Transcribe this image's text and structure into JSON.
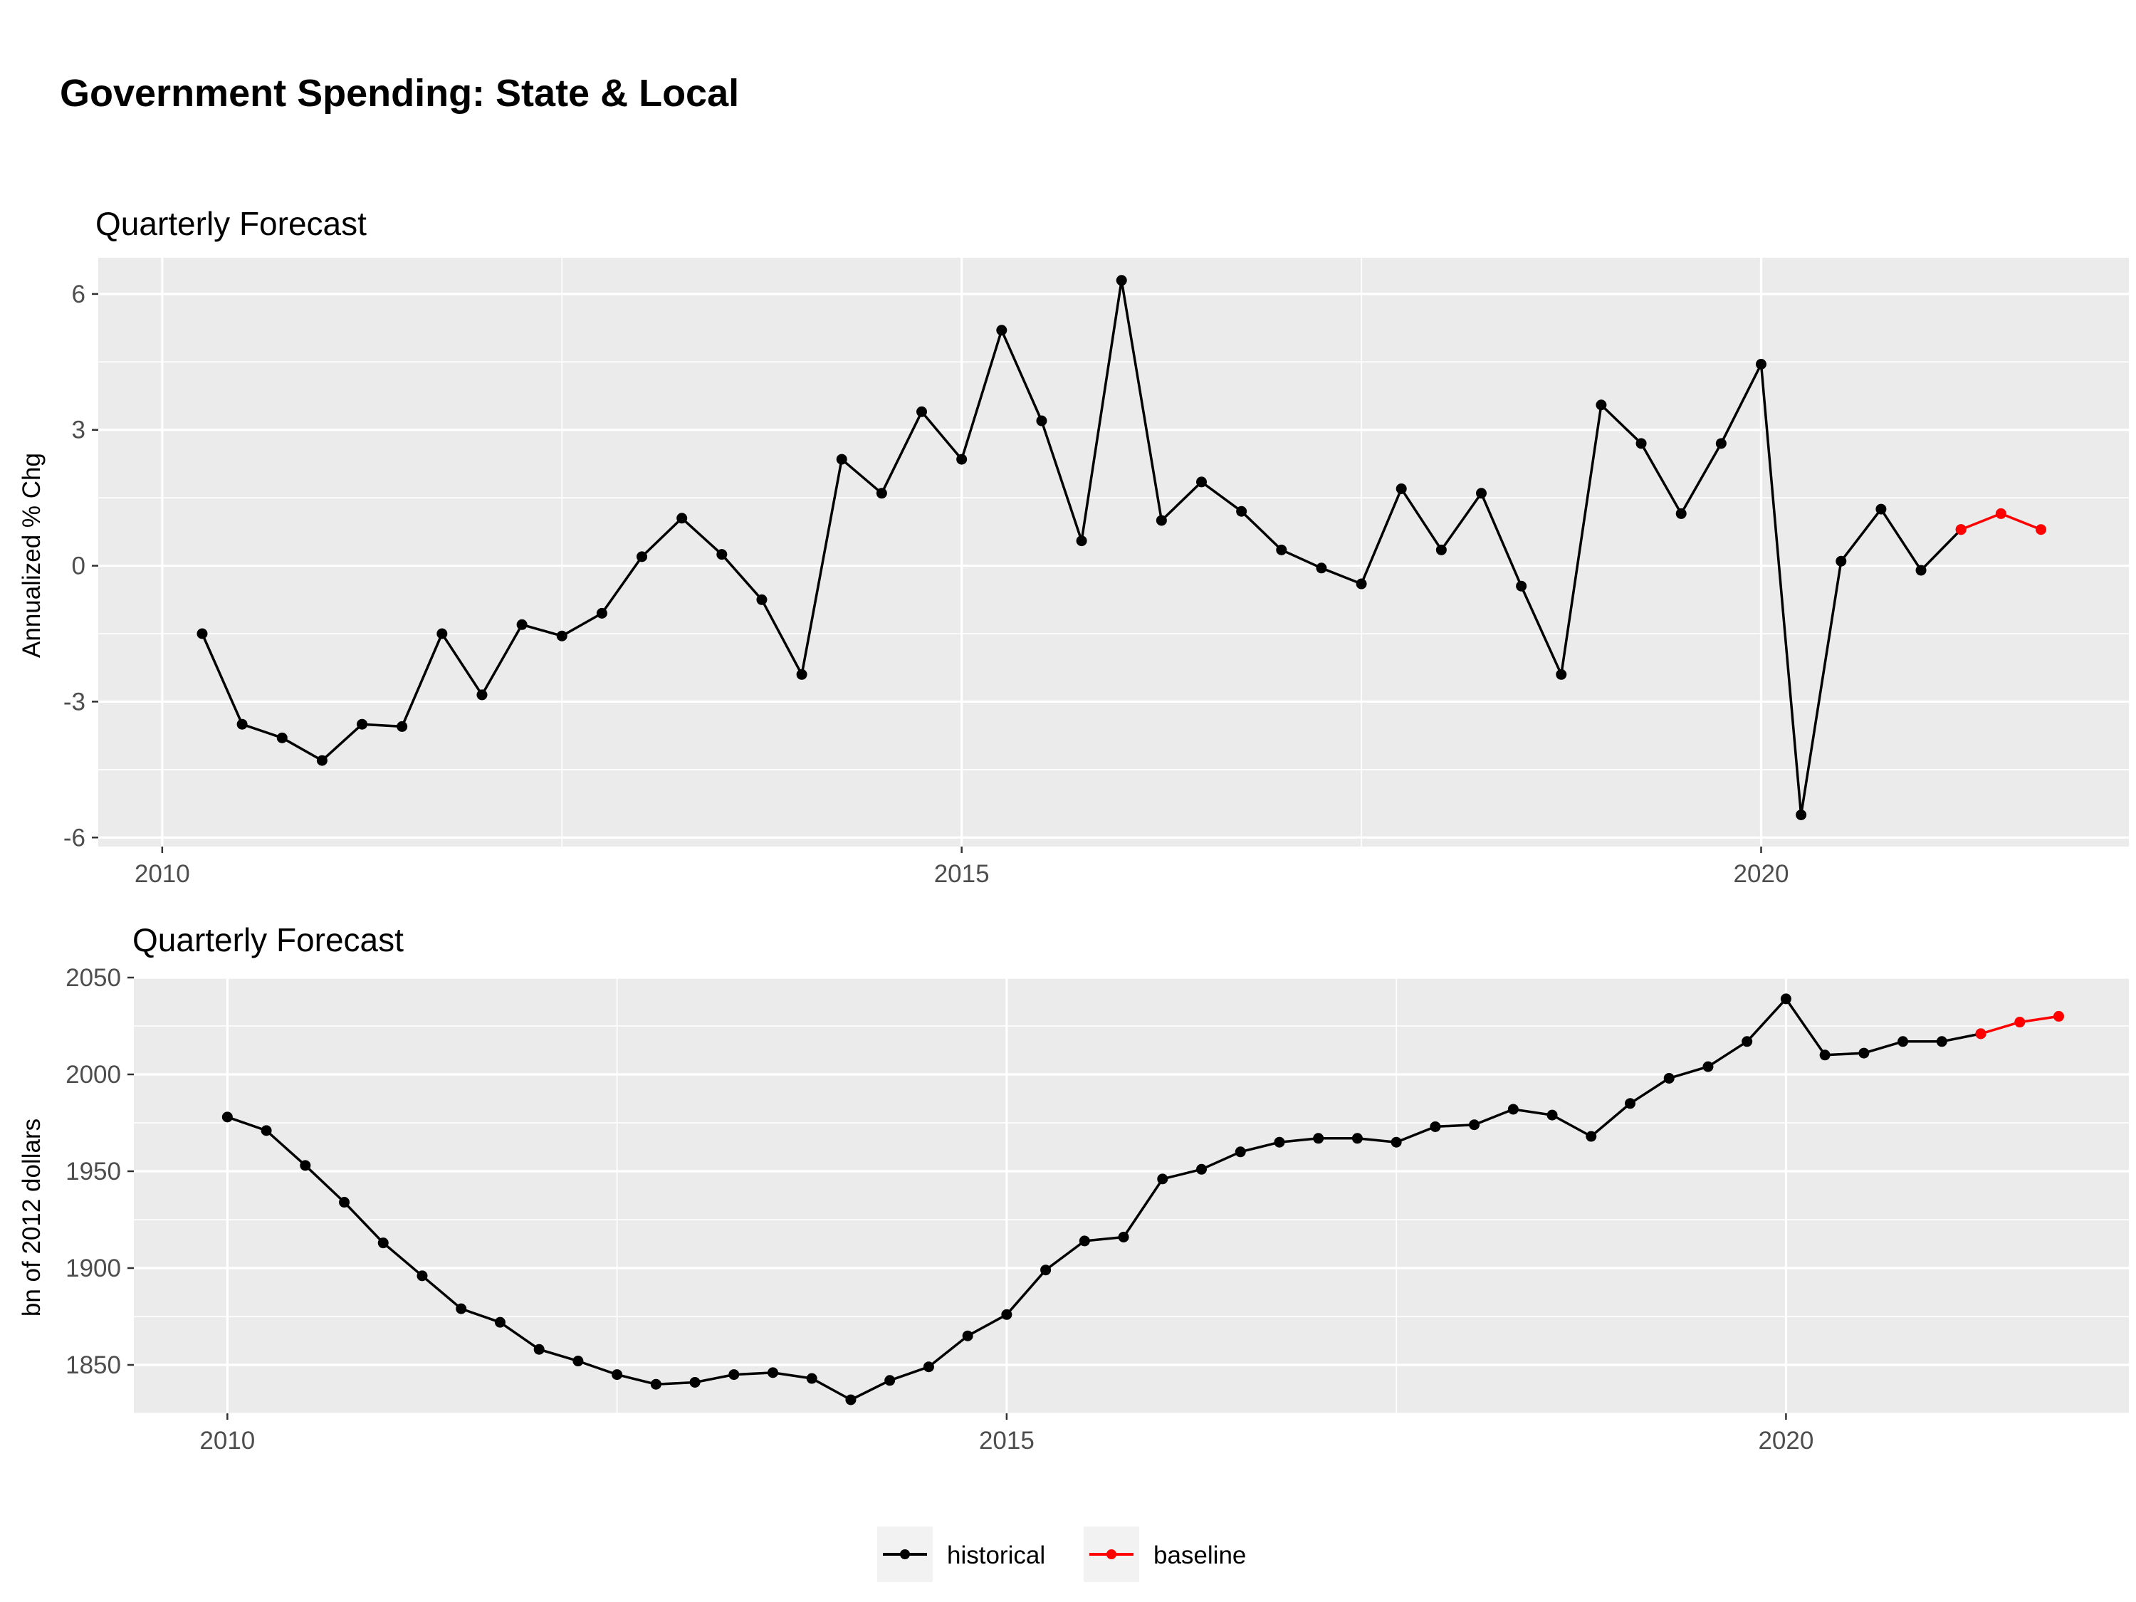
{
  "title": "Government Spending: State & Local",
  "colors": {
    "historical": "#000000",
    "baseline": "#ff0000",
    "panel": "#ebebeb",
    "grid": "#ffffff"
  },
  "legend": {
    "position": "bottom",
    "items": [
      {
        "label": "historical",
        "color": "#000000"
      },
      {
        "label": "baseline",
        "color": "#ff0000"
      }
    ]
  },
  "chart_data": [
    {
      "type": "line",
      "title": "Quarterly Forecast",
      "xlabel": "",
      "ylabel": "Annualized % Chg",
      "xlim": [
        2009.6,
        2022.3
      ],
      "ylim": [
        -6.2,
        6.8
      ],
      "xticks": [
        2010,
        2015,
        2020
      ],
      "xtick_labels": [
        "2010",
        "2015",
        "2020"
      ],
      "yticks": [
        -6,
        -3,
        0,
        3,
        6
      ],
      "ytick_labels": [
        "-6",
        "-3",
        "0",
        "3",
        "6"
      ],
      "grid": true,
      "series": [
        {
          "name": "historical",
          "color": "#000000",
          "x": [
            2010.25,
            2010.5,
            2010.75,
            2011.0,
            2011.25,
            2011.5,
            2011.75,
            2012.0,
            2012.25,
            2012.5,
            2012.75,
            2013.0,
            2013.25,
            2013.5,
            2013.75,
            2014.0,
            2014.25,
            2014.5,
            2014.75,
            2015.0,
            2015.25,
            2015.5,
            2015.75,
            2016.0,
            2016.25,
            2016.5,
            2016.75,
            2017.0,
            2017.25,
            2017.5,
            2017.75,
            2018.0,
            2018.25,
            2018.5,
            2018.75,
            2019.0,
            2019.25,
            2019.5,
            2019.75,
            2020.0,
            2020.25,
            2020.5,
            2020.75,
            2021.0,
            2021.25
          ],
          "y": [
            -1.5,
            -3.5,
            -3.8,
            -4.3,
            -3.5,
            -3.55,
            -1.5,
            -2.85,
            -1.3,
            -1.55,
            -1.05,
            0.2,
            1.05,
            0.25,
            -0.75,
            -2.4,
            2.35,
            1.6,
            3.4,
            2.35,
            5.2,
            3.2,
            0.55,
            6.3,
            1.0,
            1.85,
            1.2,
            0.35,
            -0.05,
            -0.4,
            1.7,
            0.35,
            1.6,
            -0.45,
            -2.4,
            3.55,
            2.7,
            1.15,
            2.7,
            4.45,
            -5.5,
            0.1,
            1.25,
            -0.1,
            0.8
          ]
        },
        {
          "name": "baseline",
          "color": "#ff0000",
          "x": [
            2021.25,
            2021.5,
            2021.75
          ],
          "y": [
            0.8,
            1.15,
            0.8
          ]
        }
      ]
    },
    {
      "type": "line",
      "title": "Quarterly Forecast",
      "xlabel": "",
      "ylabel": "bn of 2012 dollars",
      "xlim": [
        2009.4,
        2022.2
      ],
      "ylim": [
        1825,
        2050
      ],
      "xticks": [
        2010,
        2015,
        2020
      ],
      "xtick_labels": [
        "2010",
        "2015",
        "2020"
      ],
      "yticks": [
        1850,
        1900,
        1950,
        2000,
        2050
      ],
      "ytick_labels": [
        "1850",
        "1900",
        "1950",
        "2000",
        "2050"
      ],
      "grid": true,
      "series": [
        {
          "name": "historical",
          "color": "#000000",
          "x": [
            2010.0,
            2010.25,
            2010.5,
            2010.75,
            2011.0,
            2011.25,
            2011.5,
            2011.75,
            2012.0,
            2012.25,
            2012.5,
            2012.75,
            2013.0,
            2013.25,
            2013.5,
            2013.75,
            2014.0,
            2014.25,
            2014.5,
            2014.75,
            2015.0,
            2015.25,
            2015.5,
            2015.75,
            2016.0,
            2016.25,
            2016.5,
            2016.75,
            2017.0,
            2017.25,
            2017.5,
            2017.75,
            2018.0,
            2018.25,
            2018.5,
            2018.75,
            2019.0,
            2019.25,
            2019.5,
            2019.75,
            2020.0,
            2020.25,
            2020.5,
            2020.75,
            2021.0,
            2021.25
          ],
          "y": [
            1978,
            1971,
            1953,
            1934,
            1913,
            1896,
            1879,
            1872,
            1858,
            1852,
            1845,
            1840,
            1841,
            1845,
            1846,
            1843,
            1832,
            1842,
            1849,
            1865,
            1876,
            1899,
            1914,
            1916,
            1946,
            1951,
            1960,
            1965,
            1967,
            1967,
            1965,
            1973,
            1974,
            1982,
            1979,
            1968,
            1985,
            1998,
            2004,
            2017,
            2039,
            2010,
            2011,
            2017,
            2017,
            2021
          ]
        },
        {
          "name": "baseline",
          "color": "#ff0000",
          "x": [
            2021.25,
            2021.5,
            2021.75
          ],
          "y": [
            2021,
            2027,
            2030
          ]
        }
      ]
    }
  ]
}
